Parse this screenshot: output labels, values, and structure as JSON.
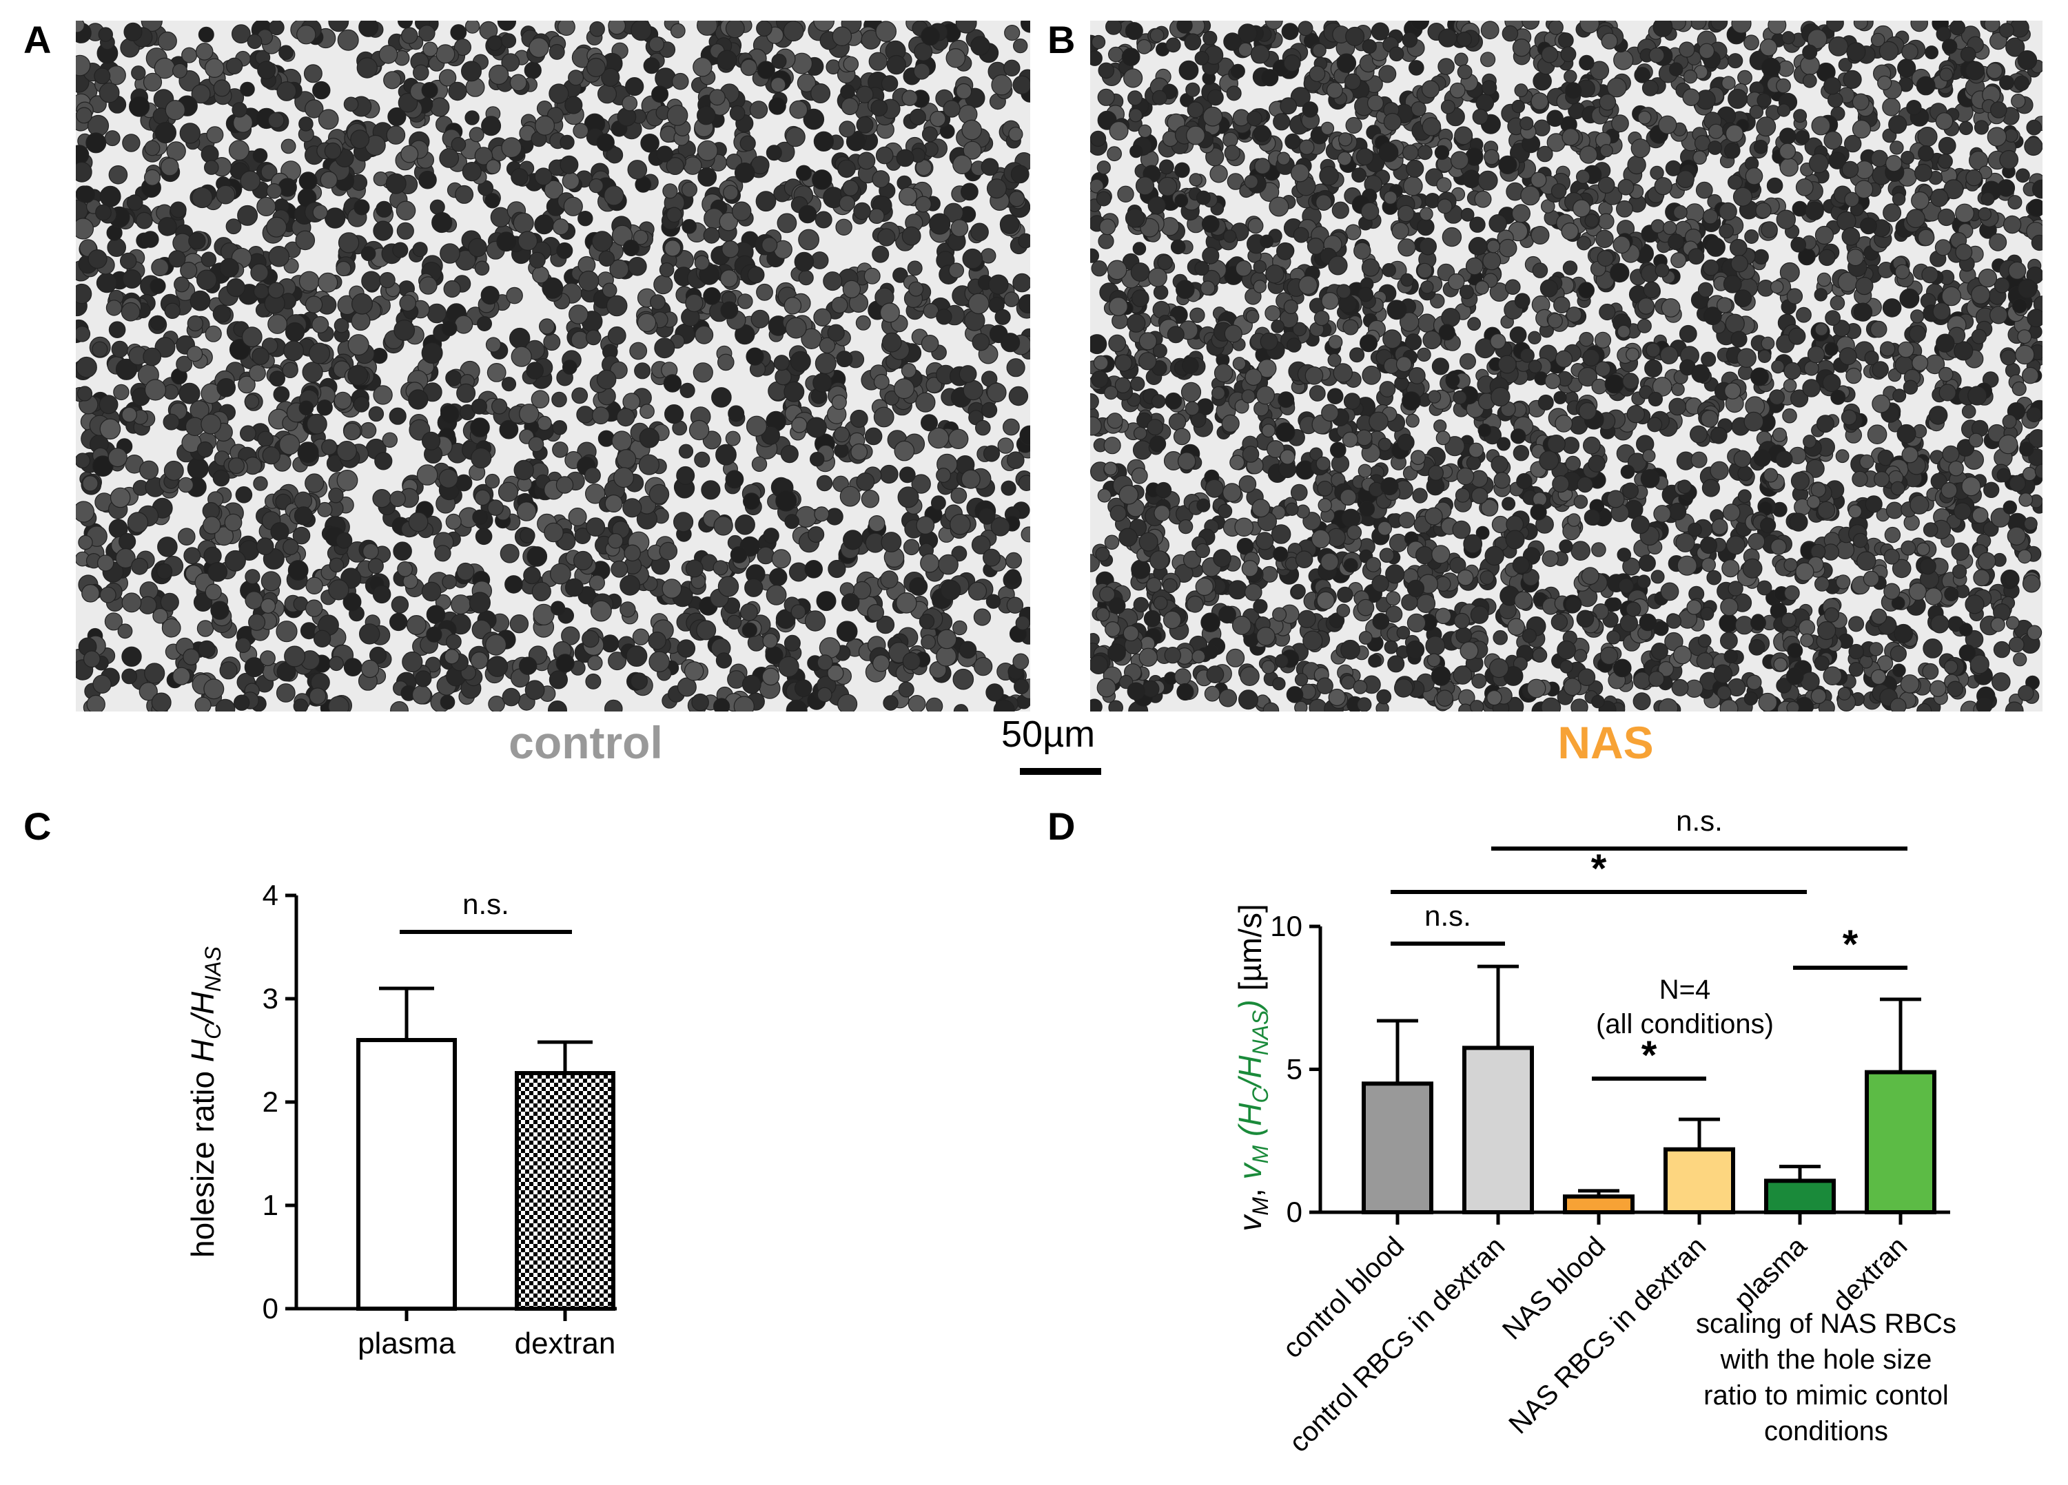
{
  "panels": {
    "a": "A",
    "b": "B",
    "c": "C",
    "d": "D"
  },
  "images": {
    "control_label": "control",
    "nas_label": "NAS",
    "control_color": "#999999",
    "nas_color": "#f7a235",
    "scale_bar_label": "50µm"
  },
  "chart_data": [
    {
      "type": "bar",
      "panel": "C",
      "categories": [
        "plasma",
        "dextran"
      ],
      "values": [
        2.6,
        2.28
      ],
      "errors": [
        0.5,
        0.3
      ],
      "ylabel": {
        "prefix": "holesize ratio ",
        "num": "H",
        "num_sub": "C",
        "slash": "/",
        "den": "H",
        "den_sub": "NAS"
      },
      "ylim": [
        0,
        4
      ],
      "yticks": [
        "0",
        "1",
        "2",
        "3",
        "4"
      ],
      "fills": [
        "#ffffff",
        "checkerboard"
      ],
      "significance": [
        {
          "from": 0,
          "to": 1,
          "label": "n.s."
        }
      ]
    },
    {
      "type": "bar",
      "panel": "D",
      "categories": [
        "control blood",
        "control RBCs in dextran",
        "NAS blood",
        "NAS RBCs in dextran",
        "plasma",
        "dextran"
      ],
      "values": [
        4.5,
        5.75,
        0.55,
        2.2,
        1.1,
        4.9
      ],
      "errors": [
        2.2,
        2.85,
        0.2,
        1.05,
        0.5,
        2.55
      ],
      "colors": [
        "#999999",
        "#d4d4d4",
        "#f7a235",
        "#fdd680",
        "#1a8a3a",
        "#5cbb45"
      ],
      "ylim": [
        0,
        10
      ],
      "yticks": [
        "0",
        "5",
        "10"
      ],
      "ylabel": {
        "black_part": "v",
        "black_sub": "M",
        "comma": ", ",
        "green_v": "v",
        "green_v_sub": "M",
        "green_open": " (H",
        "green_c_sub": "C",
        "green_mid": "/H",
        "green_nas_sub": "NAS",
        "green_close": ")",
        "unit": " [µm/s]",
        "green": "#1a8a3a"
      },
      "annotation_n": "N=4",
      "annotation_cond": "(all conditions)",
      "group_caption": [
        "scaling of NAS RBCs",
        "with the hole size",
        "ratio to mimic contol",
        "conditions"
      ],
      "significance": [
        {
          "from": 0,
          "to": 1,
          "label": "n.s."
        },
        {
          "from": 2,
          "to": 3,
          "label": "*"
        },
        {
          "from": 4,
          "to": 5,
          "label": "*"
        },
        {
          "from": 0,
          "to": 4,
          "label": "*"
        },
        {
          "from": 1,
          "to": 5,
          "label": "n.s."
        }
      ]
    }
  ]
}
